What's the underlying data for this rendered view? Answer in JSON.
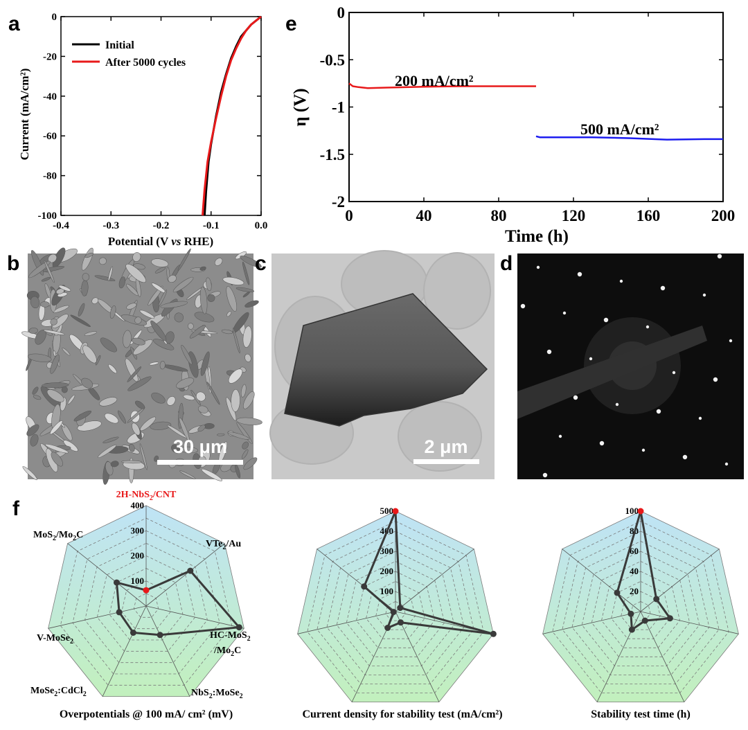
{
  "panels": {
    "a": {
      "label": "a",
      "chart_data": {
        "type": "line",
        "xlabel_pre": "Potential (V ",
        "xlabel_it": "vs",
        "xlabel_post": " RHE)",
        "ylabel": "Current (mA/cm²)",
        "xlim": [
          -0.4,
          0.0
        ],
        "ylim": [
          -100,
          0
        ],
        "xticks": [
          "-0.4",
          "-0.3",
          "-0.2",
          "-0.1",
          "0.0"
        ],
        "yticks": [
          "-100",
          "-80",
          "-60",
          "-40",
          "-20",
          "0"
        ],
        "legend_position": "top-left",
        "series": [
          {
            "name": "Initial",
            "color": "#000000",
            "x": [
              0.0,
              -0.01,
              -0.02,
              -0.03,
              -0.04,
              -0.05,
              -0.06,
              -0.07,
              -0.08,
              -0.09,
              -0.1,
              -0.105,
              -0.11,
              -0.113
            ],
            "y": [
              0,
              -2,
              -4,
              -7,
              -10,
              -15,
              -21,
              -29,
              -38,
              -50,
              -64,
              -73,
              -88,
              -100
            ]
          },
          {
            "name": "After 5000 cycles",
            "color": "#e8191a",
            "x": [
              0.0,
              -0.01,
              -0.02,
              -0.03,
              -0.04,
              -0.05,
              -0.06,
              -0.07,
              -0.08,
              -0.09,
              -0.1,
              -0.107,
              -0.113,
              -0.117
            ],
            "y": [
              0,
              -2,
              -4,
              -7,
              -11,
              -16,
              -22,
              -30,
              -40,
              -51,
              -63,
              -73,
              -87,
              -100
            ]
          }
        ]
      }
    },
    "e": {
      "label": "e",
      "chart_data": {
        "type": "line",
        "xlabel": "Time (h)",
        "ylabel": "η (V)",
        "xlim": [
          0,
          200
        ],
        "ylim": [
          -2,
          0
        ],
        "xticks": [
          "0",
          "40",
          "80",
          "120",
          "160",
          "200"
        ],
        "yticks": [
          "0",
          "-0.5",
          "-1",
          "-1.5",
          "-2"
        ],
        "annotations": [
          "200 mA/cm²",
          "500 mA/cm²"
        ],
        "series": [
          {
            "name": "200 mA/cm²",
            "color": "#e8191a",
            "x": [
              0,
              2,
              5,
              10,
              20,
              40,
              60,
              80,
              100
            ],
            "y": [
              -0.75,
              -0.78,
              -0.79,
              -0.8,
              -0.795,
              -0.785,
              -0.78,
              -0.78,
              -0.78
            ]
          },
          {
            "name": "500 mA/cm²",
            "color": "#1c1cf0",
            "x": [
              100,
              102,
              110,
              130,
              150,
              170,
              190,
              200
            ],
            "y": [
              -1.31,
              -1.32,
              -1.32,
              -1.32,
              -1.33,
              -1.345,
              -1.34,
              -1.34
            ]
          }
        ]
      }
    },
    "b": {
      "label": "b",
      "scale_bar": "30 μm"
    },
    "c": {
      "label": "c",
      "scale_bar": "2 μm"
    },
    "d": {
      "label": "d"
    },
    "f": {
      "label": "f",
      "chart_data": [
        {
          "type": "radar",
          "title": "Overpotentials @ 100 mA/ cm² (mV)",
          "axes": [
            "2H-NbS₂/CNT",
            "VTe₂/Au",
            "HC-MoS₂/Mo₂C",
            "NbS₂:MoSe₂",
            "MoSe₂:CdCl₂",
            "V-MoSe₂",
            "MoS₂/Mo₂C"
          ],
          "rlim": [
            0,
            400
          ],
          "rticks": [
            "100",
            "200",
            "300",
            "400"
          ],
          "values": [
            63,
            225,
            380,
            128,
            118,
            110,
            150
          ]
        },
        {
          "type": "radar",
          "title": "Current density for stability test (mA/cm²)",
          "axes": [
            "2H-NbS₂/CNT",
            "VTe₂/Au",
            "HC-MoS₂/Mo₂C",
            "NbS₂:MoSe₂",
            "MoSe₂:CdCl₂",
            "V-MoSe₂",
            "MoS₂/Mo₂C"
          ],
          "rlim": [
            0,
            500
          ],
          "rticks": [
            "100",
            "200",
            "300",
            "400",
            "500"
          ],
          "values": [
            500,
            30,
            500,
            60,
            90,
            10,
            200
          ]
        },
        {
          "type": "radar",
          "title": "Stability test time (h)",
          "axes": [
            "2H-NbS₂/CNT",
            "VTe₂/Au",
            "HC-MoS₂/Mo₂C",
            "NbS₂:MoSe₂",
            "MoSe₂:CdCl₂",
            "V-MoSe₂",
            "MoS₂/Mo₂C"
          ],
          "rlim": [
            0,
            100
          ],
          "rticks": [
            "20",
            "40",
            "60",
            "80",
            "100"
          ],
          "values": [
            100,
            20,
            30,
            10,
            20,
            10,
            30
          ]
        }
      ]
    }
  }
}
